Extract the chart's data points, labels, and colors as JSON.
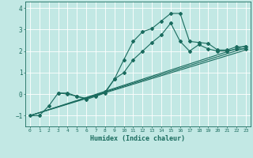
{
  "xlabel": "Humidex (Indice chaleur)",
  "xlim": [
    -0.5,
    23.5
  ],
  "ylim": [
    -1.5,
    4.3
  ],
  "yticks": [
    -1,
    0,
    1,
    2,
    3,
    4
  ],
  "xticks": [
    0,
    1,
    2,
    3,
    4,
    5,
    6,
    7,
    8,
    9,
    10,
    11,
    12,
    13,
    14,
    15,
    16,
    17,
    18,
    19,
    20,
    21,
    22,
    23
  ],
  "bg_color": "#c2e8e4",
  "line_color": "#1a6b5e",
  "grid_color": "#ffffff",
  "curve_main_x": [
    0,
    1,
    2,
    3,
    4,
    5,
    6,
    7,
    8,
    9,
    10,
    11,
    12,
    13,
    14,
    15,
    16,
    17,
    18,
    19,
    20,
    21,
    22,
    23
  ],
  "curve_main_y": [
    -1.0,
    -1.0,
    -0.55,
    0.05,
    0.05,
    -0.1,
    -0.25,
    -0.1,
    0.05,
    0.7,
    1.6,
    2.45,
    2.9,
    3.05,
    3.4,
    3.75,
    3.75,
    2.45,
    2.4,
    2.35,
    2.05,
    2.05,
    2.2,
    2.2
  ],
  "curve_second_x": [
    3,
    4,
    5,
    6,
    7,
    8,
    9,
    10,
    11,
    12,
    13,
    14,
    15,
    16,
    17,
    18,
    19,
    20,
    21,
    22,
    23
  ],
  "curve_second_y": [
    0.05,
    0.0,
    -0.1,
    -0.2,
    -0.05,
    0.1,
    0.7,
    1.0,
    1.6,
    2.0,
    2.4,
    2.75,
    3.3,
    2.45,
    2.0,
    2.3,
    2.1,
    2.0,
    2.0,
    2.1,
    2.1
  ],
  "trend_lines": [
    {
      "x0": 0,
      "y0": -1.0,
      "x1": 23,
      "y1": 2.05
    },
    {
      "x0": 0,
      "y0": -1.0,
      "x1": 23,
      "y1": 2.15
    },
    {
      "x0": 0,
      "y0": -1.0,
      "x1": 23,
      "y1": 2.25
    }
  ]
}
